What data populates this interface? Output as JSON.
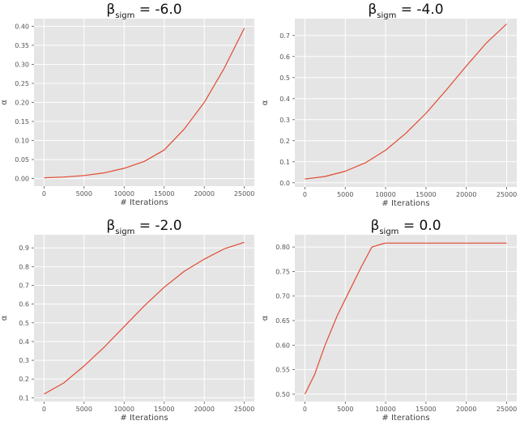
{
  "chart_data": [
    {
      "type": "line",
      "title": {
        "symbol": "β",
        "subscript": "sigm",
        "value": " = -6.0"
      },
      "xlabel": "# Iterations",
      "ylabel": "α",
      "xlim": [
        -1250,
        26250
      ],
      "ylim": [
        -0.02,
        0.42
      ],
      "xticks": [
        0,
        5000,
        10000,
        15000,
        20000,
        25000
      ],
      "xtick_labels": [
        "0",
        "5000",
        "10000",
        "15000",
        "20000",
        "25000"
      ],
      "yticks": [
        0.0,
        0.05,
        0.1,
        0.15,
        0.2,
        0.25,
        0.3,
        0.35,
        0.4
      ],
      "ytick_labels": [
        "0.00",
        "0.05",
        "0.10",
        "0.15",
        "0.20",
        "0.25",
        "0.30",
        "0.35",
        "0.40"
      ],
      "grid": true,
      "series": [
        {
          "color": "#e24a33",
          "x": [
            0,
            2500,
            5000,
            7500,
            10000,
            12500,
            15000,
            17500,
            20000,
            22500,
            25000
          ],
          "y": [
            0.002,
            0.004,
            0.008,
            0.015,
            0.027,
            0.045,
            0.075,
            0.13,
            0.2,
            0.29,
            0.395
          ]
        }
      ]
    },
    {
      "type": "line",
      "title": {
        "symbol": "β",
        "subscript": "sigm",
        "value": " = -4.0"
      },
      "xlabel": "# Iterations",
      "ylabel": "α",
      "xlim": [
        -1250,
        26250
      ],
      "ylim": [
        -0.02,
        0.78
      ],
      "xticks": [
        0,
        5000,
        10000,
        15000,
        20000,
        25000
      ],
      "xtick_labels": [
        "0",
        "5000",
        "10000",
        "15000",
        "20000",
        "25000"
      ],
      "yticks": [
        0.0,
        0.1,
        0.2,
        0.3,
        0.4,
        0.5,
        0.6,
        0.7
      ],
      "ytick_labels": [
        "0.0",
        "0.1",
        "0.2",
        "0.3",
        "0.4",
        "0.5",
        "0.6",
        "0.7"
      ],
      "grid": true,
      "series": [
        {
          "color": "#e24a33",
          "x": [
            0,
            2500,
            5000,
            7500,
            10000,
            12500,
            15000,
            17500,
            20000,
            22500,
            25000
          ],
          "y": [
            0.018,
            0.03,
            0.055,
            0.095,
            0.155,
            0.235,
            0.33,
            0.44,
            0.555,
            0.665,
            0.755
          ]
        }
      ]
    },
    {
      "type": "line",
      "title": {
        "symbol": "β",
        "subscript": "sigm",
        "value": " = -2.0"
      },
      "xlabel": "# Iterations",
      "ylabel": "α",
      "xlim": [
        -1250,
        26250
      ],
      "ylim": [
        0.08,
        0.97
      ],
      "xticks": [
        0,
        5000,
        10000,
        15000,
        20000,
        25000
      ],
      "xtick_labels": [
        "0",
        "5000",
        "10000",
        "15000",
        "20000",
        "25000"
      ],
      "yticks": [
        0.1,
        0.2,
        0.3,
        0.4,
        0.5,
        0.6,
        0.7,
        0.8,
        0.9
      ],
      "ytick_labels": [
        "0.1",
        "0.2",
        "0.3",
        "0.4",
        "0.5",
        "0.6",
        "0.7",
        "0.8",
        "0.9"
      ],
      "grid": true,
      "series": [
        {
          "color": "#e24a33",
          "x": [
            0,
            2500,
            5000,
            7500,
            10000,
            12500,
            15000,
            17500,
            20000,
            22500,
            25000
          ],
          "y": [
            0.12,
            0.18,
            0.27,
            0.37,
            0.48,
            0.59,
            0.69,
            0.775,
            0.84,
            0.895,
            0.93
          ]
        }
      ]
    },
    {
      "type": "line",
      "title": {
        "symbol": "β",
        "subscript": "sigm",
        "value": " = 0.0"
      },
      "xlabel": "# Iterations",
      "ylabel": "α",
      "xlim": [
        -1250,
        26250
      ],
      "ylim": [
        0.485,
        0.825
      ],
      "xticks": [
        0,
        5000,
        10000,
        15000,
        20000,
        25000
      ],
      "xtick_labels": [
        "0",
        "5000",
        "10000",
        "15000",
        "20000",
        "25000"
      ],
      "yticks": [
        0.5,
        0.55,
        0.6,
        0.65,
        0.7,
        0.75,
        0.8
      ],
      "ytick_labels": [
        "0.50",
        "0.55",
        "0.60",
        "0.65",
        "0.70",
        "0.75",
        "0.80"
      ],
      "grid": true,
      "series": [
        {
          "color": "#e24a33",
          "x": [
            0,
            300,
            1200,
            2500,
            4000,
            5500,
            7000,
            8300,
            9500,
            10000,
            15000,
            20000,
            25000
          ],
          "y": [
            0.5,
            0.51,
            0.54,
            0.6,
            0.66,
            0.71,
            0.76,
            0.8,
            0.806,
            0.808,
            0.808,
            0.808,
            0.808
          ]
        }
      ]
    }
  ]
}
